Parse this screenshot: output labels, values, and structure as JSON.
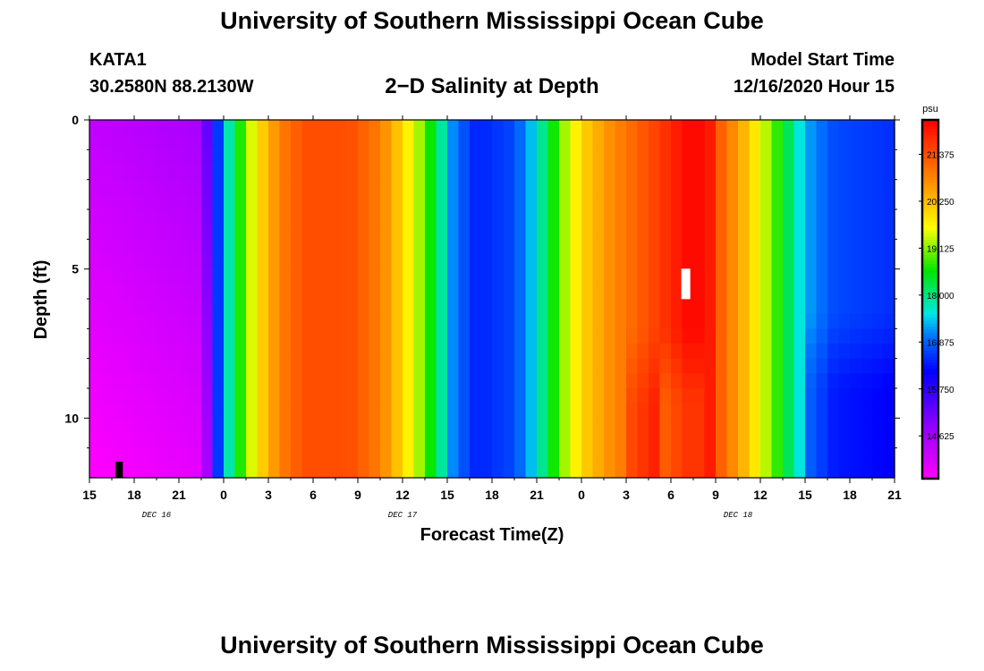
{
  "header": {
    "title": "University of Southern Mississippi Ocean Cube",
    "station": "KATA1",
    "coords": "30.2580N 88.2130W",
    "subtitle": "2−D Salinity at Depth",
    "model_start_label": "Model Start Time",
    "model_start_value": "12/16/2020 Hour 15"
  },
  "footer": {
    "title": "University of Southern Mississippi Ocean Cube"
  },
  "colors": {
    "min": "#ff00ff",
    "mid_low": "#0000ff",
    "mid": "#00ff00",
    "mid_high": "#ffff00",
    "max": "#ff0000"
  },
  "chart_data": {
    "type": "heatmap",
    "title": "2−D Salinity at Depth",
    "xlabel": "Forecast Time(Z)",
    "ylabel": "Depth (ft)",
    "x_range_hours": [
      0,
      54
    ],
    "ylim": [
      0,
      12
    ],
    "x_ticks": [
      {
        "hour": 0,
        "label": "15"
      },
      {
        "hour": 3,
        "label": "18"
      },
      {
        "hour": 6,
        "label": "21"
      },
      {
        "hour": 9,
        "label": "0"
      },
      {
        "hour": 12,
        "label": "3"
      },
      {
        "hour": 15,
        "label": "6"
      },
      {
        "hour": 18,
        "label": "9"
      },
      {
        "hour": 21,
        "label": "12"
      },
      {
        "hour": 24,
        "label": "15"
      },
      {
        "hour": 27,
        "label": "18"
      },
      {
        "hour": 30,
        "label": "21"
      },
      {
        "hour": 33,
        "label": "0"
      },
      {
        "hour": 36,
        "label": "3"
      },
      {
        "hour": 39,
        "label": "6"
      },
      {
        "hour": 42,
        "label": "9"
      },
      {
        "hour": 45,
        "label": "12"
      },
      {
        "hour": 48,
        "label": "15"
      },
      {
        "hour": 51,
        "label": "18"
      },
      {
        "hour": 54,
        "label": "21"
      }
    ],
    "date_labels": [
      {
        "hour": 4.5,
        "label": "DEC 16"
      },
      {
        "hour": 21,
        "label": "DEC 17"
      },
      {
        "hour": 43.5,
        "label": "DEC 18"
      }
    ],
    "y_ticks": [
      {
        "value": 0,
        "label": "0"
      },
      {
        "value": 5,
        "label": "5"
      },
      {
        "value": 10,
        "label": "10"
      }
    ],
    "colorbar": {
      "unit": "psu",
      "range": [
        13.6,
        22.2
      ],
      "ticks": [
        "14.625",
        "15.750",
        "16.875",
        "18.000",
        "19.125",
        "20.250",
        "21.375"
      ]
    },
    "time_step_hours": 0.75,
    "surface_profile": [
      {
        "hour": 0,
        "value": 14.3
      },
      {
        "hour": 7.5,
        "value": 14.6
      },
      {
        "hour": 8.3,
        "value": 16.0
      },
      {
        "hour": 9.2,
        "value": 17.6
      },
      {
        "hour": 10.2,
        "value": 18.8
      },
      {
        "hour": 11.3,
        "value": 19.9
      },
      {
        "hour": 12.8,
        "value": 20.9
      },
      {
        "hour": 14.5,
        "value": 21.4
      },
      {
        "hour": 17.5,
        "value": 21.4
      },
      {
        "hour": 19.5,
        "value": 20.9
      },
      {
        "hour": 21.0,
        "value": 20.0
      },
      {
        "hour": 22.5,
        "value": 19.0
      },
      {
        "hour": 23.5,
        "value": 18.0
      },
      {
        "hour": 24.5,
        "value": 17.0
      },
      {
        "hour": 26.0,
        "value": 16.4
      },
      {
        "hour": 28.5,
        "value": 16.7
      },
      {
        "hour": 30.0,
        "value": 17.6
      },
      {
        "hour": 31.5,
        "value": 19.0
      },
      {
        "hour": 33.0,
        "value": 20.0
      },
      {
        "hour": 34.5,
        "value": 20.6
      },
      {
        "hour": 36.0,
        "value": 21.0
      },
      {
        "hour": 37.5,
        "value": 21.4
      },
      {
        "hour": 39.0,
        "value": 21.8
      },
      {
        "hour": 40.0,
        "value": 22.1
      },
      {
        "hour": 41.5,
        "value": 22.1
      },
      {
        "hour": 42.0,
        "value": 21.4
      },
      {
        "hour": 43.5,
        "value": 20.6
      },
      {
        "hour": 45.0,
        "value": 19.6
      },
      {
        "hour": 46.5,
        "value": 18.5
      },
      {
        "hour": 48.0,
        "value": 17.3
      },
      {
        "hour": 50.0,
        "value": 16.7
      },
      {
        "hour": 54.0,
        "value": 16.5
      }
    ],
    "deep_anomalies": [
      {
        "hour_start": 36.0,
        "hour_end": 38.5,
        "depth_start": 7.0,
        "delta": 0.35
      },
      {
        "hour_start": 38.5,
        "hour_end": 41.5,
        "depth_start": 7.0,
        "delta": -0.45
      },
      {
        "hour_start": 48.0,
        "hour_end": 54.0,
        "depth_start": 6.5,
        "delta": -0.35
      }
    ],
    "markers": [
      {
        "hour": 2.0,
        "depth": 11.5,
        "color": "#000000"
      },
      {
        "hour": 40.0,
        "depth": 5.5,
        "color": "#ffffff"
      }
    ]
  }
}
